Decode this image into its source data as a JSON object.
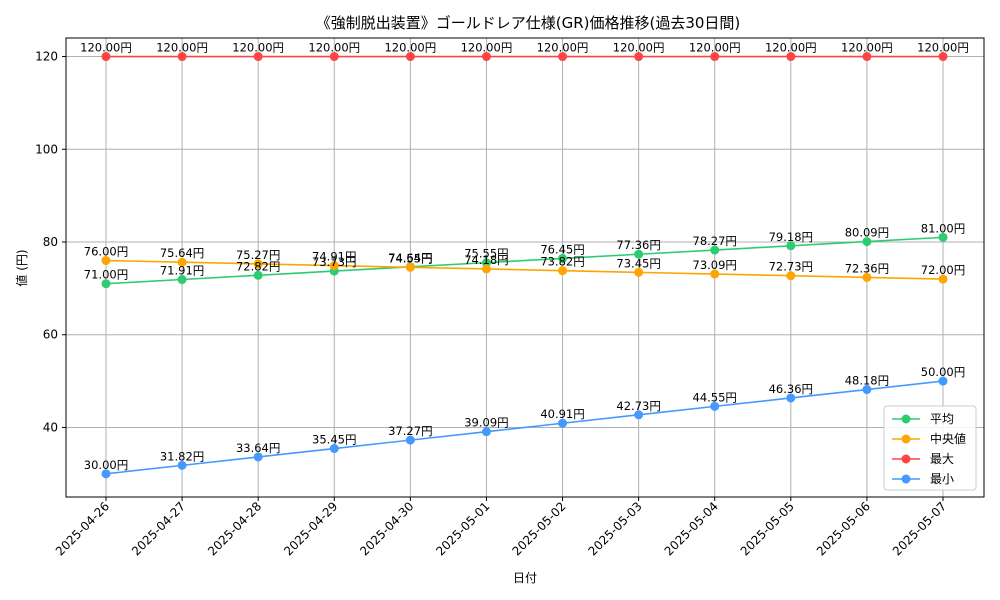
{
  "chart_data": {
    "type": "line",
    "title": "《強制脱出装置》ゴールドレア仕様(GR)価格推移(過去30日間)",
    "xlabel": "日付",
    "ylabel": "値 (円)",
    "ylim": [
      25,
      124
    ],
    "yticks": [
      40,
      60,
      80,
      100,
      120
    ],
    "grid": true,
    "legend_position": "bottom-right",
    "label_suffix": "円",
    "categories": [
      "2025-04-26",
      "2025-04-27",
      "2025-04-28",
      "2025-04-29",
      "2025-04-30",
      "2025-05-01",
      "2025-05-02",
      "2025-05-03",
      "2025-05-04",
      "2025-05-05",
      "2025-05-06",
      "2025-05-07"
    ],
    "series": [
      {
        "name": "平均",
        "color": "#2ecc71",
        "values": [
          71.0,
          71.91,
          72.82,
          73.73,
          74.64,
          75.55,
          76.45,
          77.36,
          78.27,
          79.18,
          80.09,
          81.0
        ],
        "labels": [
          "71.00円",
          "71.91円",
          "72.82円",
          "73.73円",
          "74.64円",
          "75.55円",
          "76.45円",
          "77.36円",
          "78.27円",
          "79.18円",
          "80.09円",
          "81.00円"
        ]
      },
      {
        "name": "中央値",
        "color": "#ffa500",
        "values": [
          76.0,
          75.64,
          75.27,
          74.91,
          74.55,
          74.18,
          73.82,
          73.45,
          73.09,
          72.73,
          72.36,
          72.0
        ],
        "labels": [
          "76.00円",
          "75.64円",
          "75.27円",
          "74.91円",
          "74.55円",
          "74.18円",
          "73.82円",
          "73.45円",
          "73.09円",
          "72.73円",
          "72.36円",
          "72.00円"
        ]
      },
      {
        "name": "最大",
        "color": "#ff4444",
        "values": [
          120,
          120,
          120,
          120,
          120,
          120,
          120,
          120,
          120,
          120,
          120,
          120
        ],
        "labels": [
          "120.00円",
          "120.00円",
          "120.00円",
          "120.00円",
          "120.00円",
          "120.00円",
          "120.00円",
          "120.00円",
          "120.00円",
          "120.00円",
          "120.00円",
          "120.00円"
        ]
      },
      {
        "name": "最小",
        "color": "#4499ff",
        "values": [
          30.0,
          31.82,
          33.64,
          35.45,
          37.27,
          39.09,
          40.91,
          42.73,
          44.55,
          46.36,
          48.18,
          50.0
        ],
        "labels": [
          "30.00円",
          "31.82円",
          "33.64円",
          "35.45円",
          "37.27円",
          "39.09円",
          "40.91円",
          "42.73円",
          "44.55円",
          "46.36円",
          "48.18円",
          "50.00円"
        ]
      }
    ]
  }
}
